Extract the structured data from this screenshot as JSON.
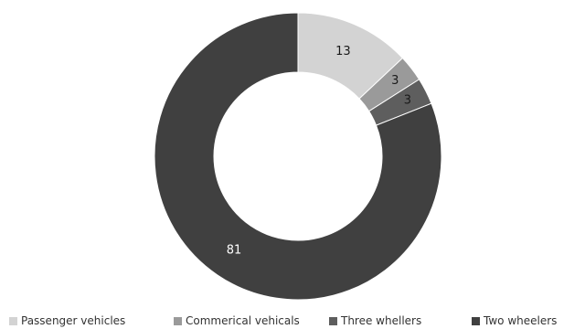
{
  "chart_data": {
    "type": "pie",
    "variant": "donut",
    "categories": [
      "Passenger vehicles",
      "Commerical vehicals",
      "Three whellers",
      "Two wheelers"
    ],
    "values": [
      13,
      3,
      3,
      81
    ],
    "data_labels": [
      "13",
      "3",
      "3",
      "81"
    ],
    "colors": [
      "#d3d3d3",
      "#9a9a9a",
      "#5e5e5e",
      "#404040"
    ],
    "label_colors": [
      "#1a1a1a",
      "#1a1a1a",
      "#1a1a1a",
      "#ffffff"
    ],
    "start": "top",
    "direction": "clockwise",
    "legend_position": "bottom"
  }
}
